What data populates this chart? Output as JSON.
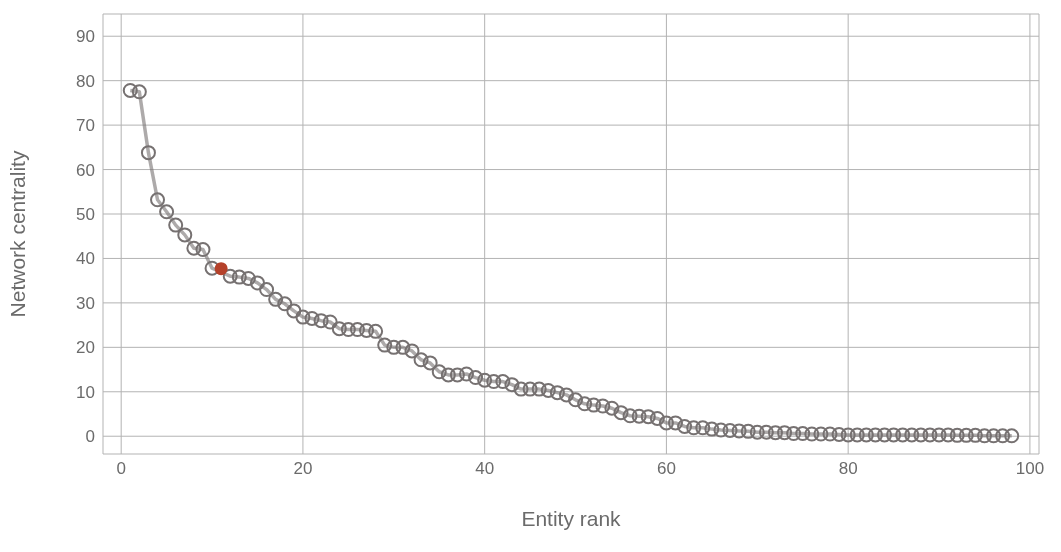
{
  "chart_data": {
    "type": "line",
    "xlabel": "Entity rank",
    "ylabel": "Network centrality",
    "x": [
      1,
      2,
      3,
      4,
      5,
      6,
      7,
      8,
      9,
      10,
      11,
      12,
      13,
      14,
      15,
      16,
      17,
      18,
      19,
      20,
      21,
      22,
      23,
      24,
      25,
      26,
      27,
      28,
      29,
      30,
      31,
      32,
      33,
      34,
      35,
      36,
      37,
      38,
      39,
      40,
      41,
      42,
      43,
      44,
      45,
      46,
      47,
      48,
      49,
      50,
      51,
      52,
      53,
      54,
      55,
      56,
      57,
      58,
      59,
      60,
      61,
      62,
      63,
      64,
      65,
      66,
      67,
      68,
      69,
      70,
      71,
      72,
      73,
      74,
      75,
      76,
      77,
      78,
      79,
      80,
      81,
      82,
      83,
      84,
      85,
      86,
      87,
      88,
      89,
      90,
      91,
      92,
      93,
      94,
      95,
      96,
      97,
      98
    ],
    "series": [
      {
        "color": "#767171",
        "values": [
          77.8,
          77.5,
          63.8,
          53.2,
          50.5,
          47.5,
          45.3,
          42.3,
          42,
          37.8,
          null,
          36,
          35.8,
          35.5,
          34.5,
          33,
          30.8,
          29.8,
          28.2,
          26.8,
          26.5,
          26,
          25.7,
          24.2,
          24,
          24,
          23.8,
          23.6,
          20.5,
          20,
          20,
          19.2,
          17.2,
          16.5,
          14.5,
          13.8,
          13.8,
          14,
          13.2,
          12.6,
          12.3,
          12.3,
          11.6,
          10.6,
          10.6,
          10.6,
          10.3,
          9.8,
          9.3,
          8.2,
          7.3,
          7,
          6.8,
          6.3,
          5.3,
          4.6,
          4.5,
          4.4,
          4,
          3,
          3,
          2.2,
          1.9,
          1.9,
          1.6,
          1.4,
          1.3,
          1.2,
          1.1,
          0.9,
          0.9,
          0.8,
          0.8,
          0.6,
          0.6,
          0.5,
          0.5,
          0.5,
          0.4,
          0.3,
          0.3,
          0.3,
          0.3,
          0.3,
          0.3,
          0.3,
          0.3,
          0.3,
          0.3,
          0.3,
          0.3,
          0.2,
          0.2,
          0.2,
          0.1,
          0.1,
          0.1,
          0.1
        ]
      },
      {
        "type": "scatter",
        "color": "#b5412a",
        "x": [
          11
        ],
        "values": [
          37.7
        ]
      }
    ],
    "xlim": [
      -2,
      101
    ],
    "xticks": [
      0,
      20,
      40,
      60,
      80,
      100
    ],
    "ylim": [
      -4,
      95
    ],
    "yticks": [
      0,
      10,
      20,
      30,
      40,
      50,
      60,
      70,
      80,
      90
    ],
    "grid": true,
    "marker": "circle"
  }
}
